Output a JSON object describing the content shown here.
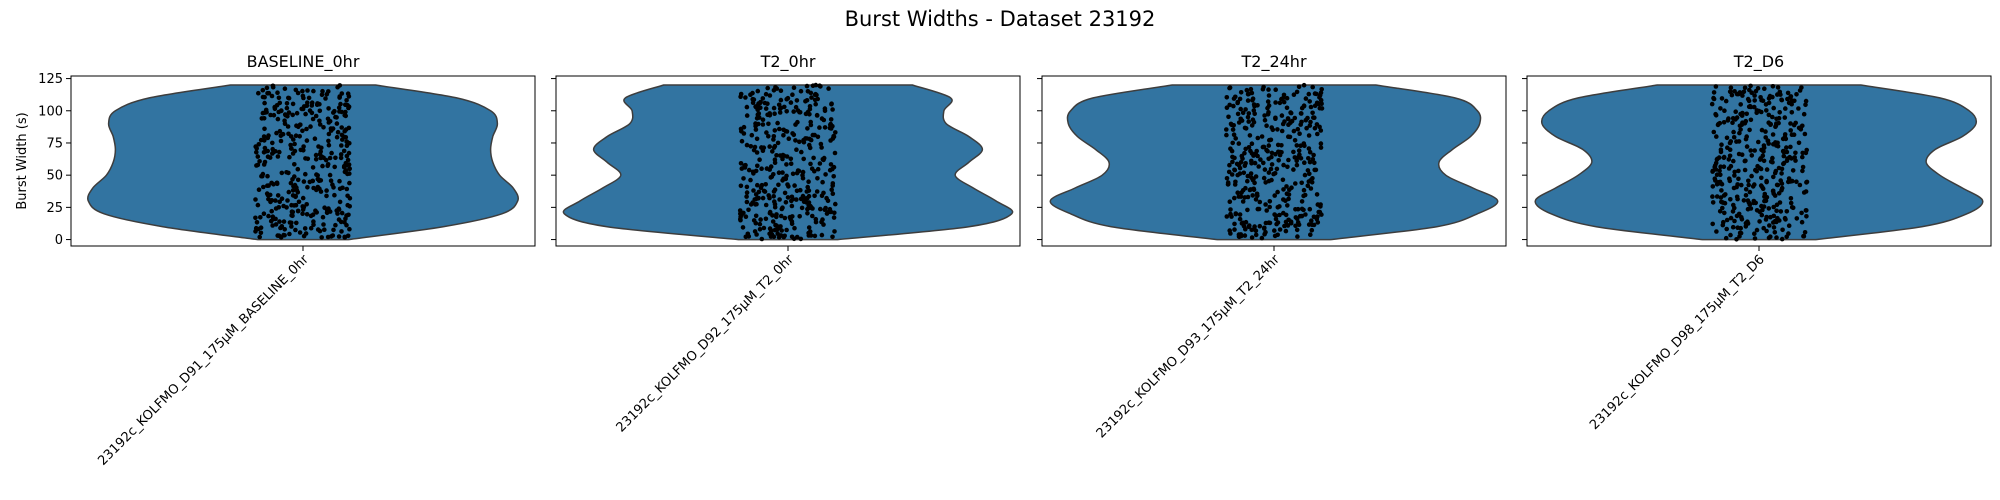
{
  "figure": {
    "title": "Burst Widths - Dataset 23192"
  },
  "colors": {
    "violin_fill": "#3274a1",
    "violin_edge": "#3d3d3d",
    "points": "#000000",
    "axes": "#000000"
  },
  "chart_data": [
    {
      "type": "violin",
      "title": "BASELINE_0hr",
      "ylabel": "Burst Width (s)",
      "categories": [
        "23192c_KOLFMO_D91_175μM_BASELINE_0hr"
      ],
      "ylim": [
        -5,
        127
      ],
      "yticks": [
        0,
        25,
        50,
        75,
        100,
        125
      ],
      "data_range": [
        0,
        120
      ],
      "density_profile": {
        "y": [
          0,
          10,
          20,
          30,
          40,
          50,
          60,
          70,
          80,
          90,
          100,
          110,
          120
        ],
        "half_width": [
          0.2,
          0.62,
          0.88,
          0.95,
          0.93,
          0.87,
          0.84,
          0.83,
          0.84,
          0.86,
          0.83,
          0.68,
          0.32
        ]
      },
      "n_points": 400
    },
    {
      "type": "violin",
      "title": "T2_0hr",
      "ylabel": "",
      "categories": [
        "23192c_KOLFMO_D92_175μM_T2_0hr"
      ],
      "ylim": [
        -5,
        127
      ],
      "yticks": [
        0,
        25,
        50,
        75,
        100,
        125
      ],
      "data_range": [
        0,
        120
      ],
      "density_profile": {
        "y": [
          0,
          10,
          20,
          30,
          40,
          50,
          60,
          70,
          80,
          90,
          100,
          110,
          120
        ],
        "half_width": [
          0.22,
          0.8,
          0.99,
          0.92,
          0.82,
          0.74,
          0.8,
          0.86,
          0.8,
          0.7,
          0.69,
          0.72,
          0.55
        ]
      },
      "n_points": 400
    },
    {
      "type": "violin",
      "title": "T2_24hr",
      "ylabel": "",
      "categories": [
        "23192c_KOLFMO_D93_175μM_T2_24hr"
      ],
      "ylim": [
        -5,
        127
      ],
      "yticks": [
        0,
        25,
        50,
        75,
        100,
        125
      ],
      "data_range": [
        0,
        120
      ],
      "density_profile": {
        "y": [
          0,
          10,
          20,
          30,
          40,
          50,
          60,
          70,
          80,
          90,
          100,
          110,
          120
        ],
        "half_width": [
          0.25,
          0.72,
          0.9,
          0.99,
          0.88,
          0.76,
          0.73,
          0.79,
          0.87,
          0.91,
          0.9,
          0.8,
          0.45
        ]
      },
      "n_points": 400
    },
    {
      "type": "violin",
      "title": "T2_D6",
      "ylabel": "",
      "categories": [
        "23192c_KOLFMO_D98_175μM_T2_D6"
      ],
      "ylim": [
        -5,
        127
      ],
      "yticks": [
        0,
        25,
        50,
        75,
        100,
        125
      ],
      "data_range": [
        0,
        120
      ],
      "density_profile": {
        "y": [
          0,
          10,
          20,
          30,
          40,
          50,
          60,
          70,
          80,
          90,
          100,
          110,
          120
        ],
        "half_width": [
          0.25,
          0.72,
          0.92,
          0.99,
          0.9,
          0.8,
          0.74,
          0.78,
          0.9,
          0.96,
          0.93,
          0.8,
          0.45
        ]
      },
      "n_points": 400
    }
  ]
}
